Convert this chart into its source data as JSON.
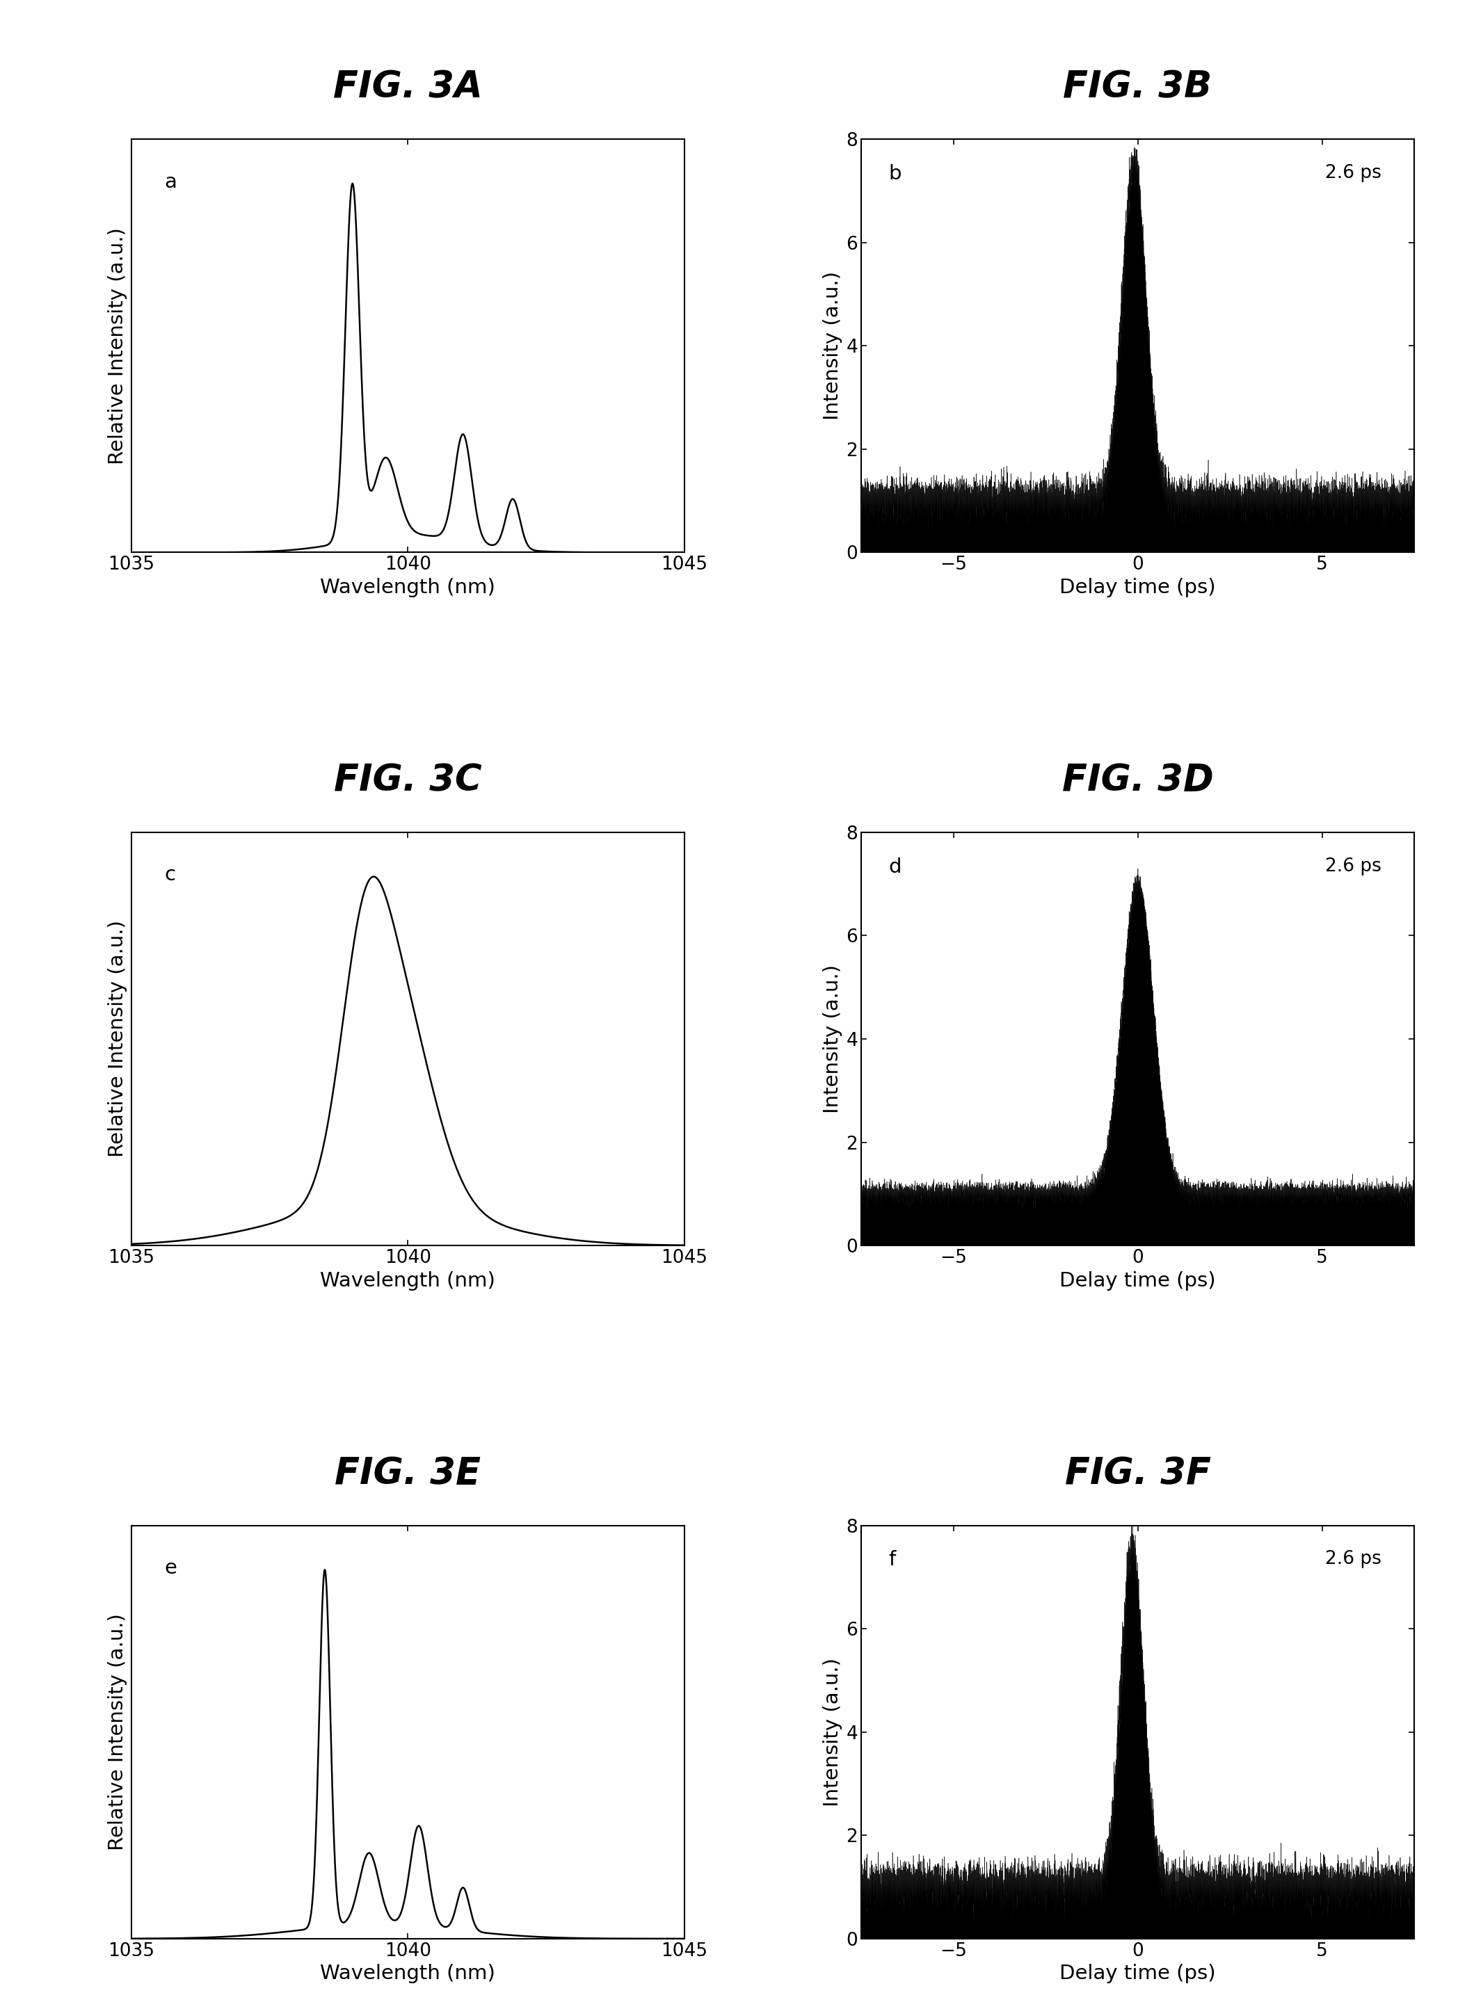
{
  "fig_titles": [
    "FIG. 3A",
    "FIG. 3B",
    "FIG. 3C",
    "FIG. 3D",
    "FIG. 3E",
    "FIG. 3F"
  ],
  "panel_labels": [
    "a",
    "b",
    "c",
    "d",
    "e",
    "f"
  ],
  "spec_xlim": [
    1035,
    1045
  ],
  "spec_xticks": [
    1035,
    1040,
    1045
  ],
  "spec_xlabel": "Wavelength (nm)",
  "spec_ylabel": "Relative Intensity (a.u.)",
  "temp_xlim": [
    -7.5,
    7.5
  ],
  "temp_xticks": [
    -5,
    0,
    5
  ],
  "temp_ylim": [
    0,
    8
  ],
  "temp_yticks": [
    0,
    2,
    4,
    6,
    8
  ],
  "temp_xlabel": "Delay time (ps)",
  "temp_ylabel": "Intensity (a.u.)",
  "annotation": "2.6 ps",
  "background_color": "#ffffff",
  "line_color": "#000000",
  "title_fontsize": 38,
  "label_fontsize": 21,
  "tick_fontsize": 19,
  "panel_label_fontsize": 21,
  "annotation_fontsize": 19
}
